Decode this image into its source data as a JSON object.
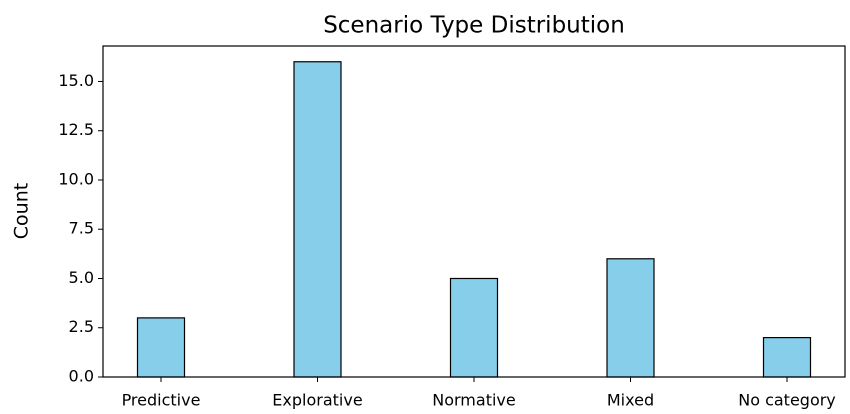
{
  "chart_data": {
    "type": "bar",
    "title": "Scenario Type Distribution",
    "y_label": "Count",
    "categories": [
      "Predictive",
      "Explorative",
      "Normative",
      "Mixed",
      "No category"
    ],
    "values": [
      3,
      16,
      5,
      6,
      2
    ],
    "color": "#87ceeb",
    "edgecolor": "#000000",
    "ylim": [
      0,
      16.8
    ],
    "yticks": [
      {
        "value": 0,
        "label": "0.0"
      },
      2.5,
      {
        "value": 5,
        "label": "5.0"
      },
      7.5,
      {
        "value": 10,
        "label": "10.0"
      },
      12.5,
      {
        "value": 15,
        "label": "15.0"
      }
    ],
    "grid": false
  }
}
